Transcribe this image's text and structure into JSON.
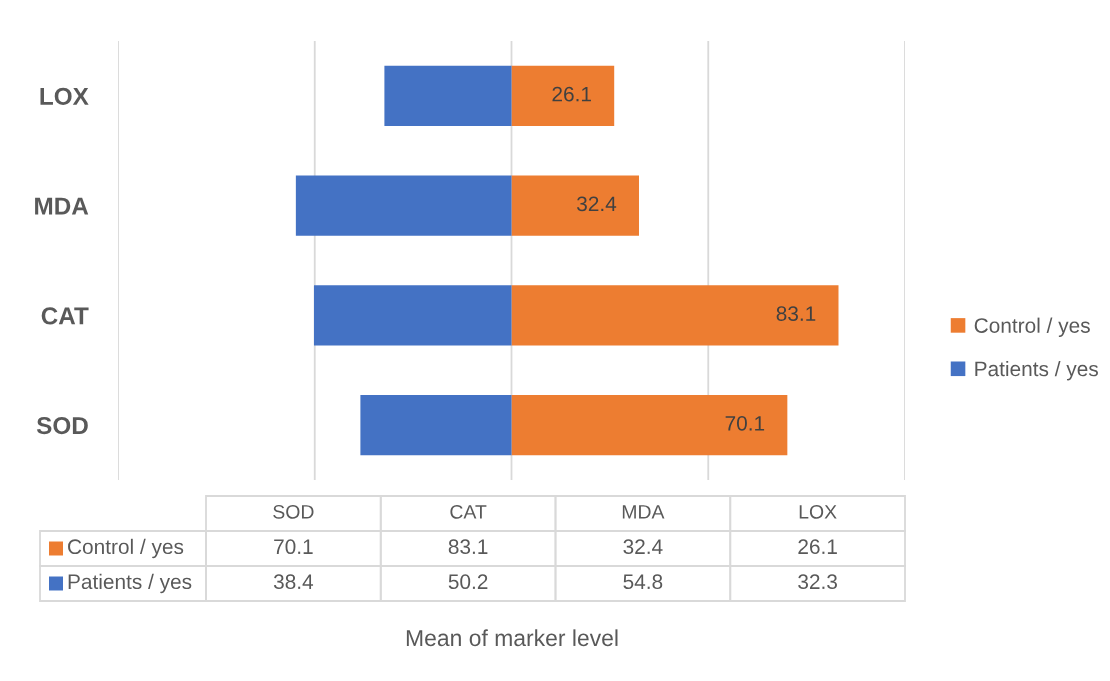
{
  "chart_data": {
    "type": "bar",
    "orientation": "horizontal",
    "stacked": true,
    "categories": [
      "LOX",
      "MDA",
      "CAT",
      "SOD"
    ],
    "series": [
      {
        "name": "Control / yes",
        "color": "#ed7d31",
        "values": [
          26.1,
          32.4,
          83.1,
          70.1
        ],
        "data_labels": true
      },
      {
        "name": "Patients / yes",
        "color": "#4472c4",
        "values": [
          -32.3,
          -54.8,
          -50.2,
          -38.4
        ]
      }
    ],
    "xlim": [
      -100,
      100
    ],
    "xticks": [
      {
        "value": -100,
        "label": null
      },
      {
        "value": -50,
        "label": null
      },
      {
        "value": 0,
        "label": null
      },
      {
        "value": 50,
        "label": null
      },
      {
        "value": 100,
        "label": null
      }
    ],
    "tick_labels": "y",
    "grid": "x",
    "legend": "right",
    "annotations": [
      "70.1",
      "83.1",
      "32.4",
      "26.1",
      "38.4",
      "50.2",
      "54.8",
      "32.3",
      "Mean of marker level"
    ]
  }
}
